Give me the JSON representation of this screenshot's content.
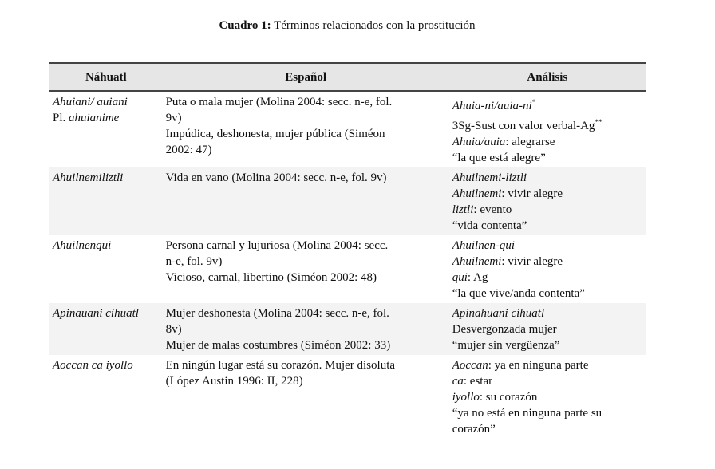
{
  "title": {
    "label": "Cuadro 1:",
    "text": " Términos relacionados con la prostitución"
  },
  "headers": [
    "Náhuatl",
    "Español",
    "Análisis"
  ],
  "rows": [
    {
      "cells": [
        [
          [
            {
              "t": "Ahuiani/ auiani",
              "i": true
            }
          ],
          [
            {
              "t": "Pl. "
            },
            {
              "t": "ahuianime",
              "i": true
            }
          ]
        ],
        [
          [
            {
              "t": "Puta o mala mujer (Molina 2004: secc. n-e, fol."
            }
          ],
          [
            {
              "t": "9v)"
            }
          ],
          [
            {
              "t": "Impúdica, deshonesta, mujer pública (Siméon"
            }
          ],
          [
            {
              "t": "2002: 47)"
            }
          ]
        ],
        [
          [
            {
              "t": "Ahuia-ni/auia-ni",
              "i": true
            },
            {
              "t": "*",
              "s": true
            }
          ],
          [
            {
              "t": "3Sg-Sust con valor verbal-Ag"
            },
            {
              "t": "**",
              "s": true
            }
          ],
          [
            {
              "t": "Ahuia/auia",
              "i": true
            },
            {
              "t": ": alegrarse"
            }
          ],
          [
            {
              "t": "“la que está alegre”"
            }
          ]
        ]
      ]
    },
    {
      "cells": [
        [
          [
            {
              "t": "Ahuilnemiliztli",
              "i": true
            }
          ]
        ],
        [
          [
            {
              "t": "Vida en vano (Molina 2004: secc. n-e, fol. 9v)"
            }
          ]
        ],
        [
          [
            {
              "t": "Ahuilnemi-liztli",
              "i": true
            }
          ],
          [
            {
              "t": "Ahuilnemi",
              "i": true
            },
            {
              "t": ": vivir alegre"
            }
          ],
          [
            {
              "t": "liztli",
              "i": true
            },
            {
              "t": ": evento"
            }
          ],
          [
            {
              "t": "“vida contenta”"
            }
          ]
        ]
      ]
    },
    {
      "cells": [
        [
          [
            {
              "t": "Ahuilnenqui",
              "i": true
            }
          ]
        ],
        [
          [
            {
              "t": "Persona carnal y lujuriosa (Molina 2004: secc."
            }
          ],
          [
            {
              "t": "n-e, fol. 9v)"
            }
          ],
          [
            {
              "t": "Vicioso, carnal, libertino (Siméon 2002: 48)"
            }
          ]
        ],
        [
          [
            {
              "t": "Ahuilnen-qui",
              "i": true
            }
          ],
          [
            {
              "t": "Ahuilnemi",
              "i": true
            },
            {
              "t": ": vivir alegre"
            }
          ],
          [
            {
              "t": "qui",
              "i": true
            },
            {
              "t": ": Ag"
            }
          ],
          [
            {
              "t": "“la que vive/anda contenta”"
            }
          ]
        ]
      ]
    },
    {
      "cells": [
        [
          [
            {
              "t": "Apinauani cihuatl",
              "i": true
            }
          ]
        ],
        [
          [
            {
              "t": "Mujer deshonesta (Molina 2004: secc. n-e, fol."
            }
          ],
          [
            {
              "t": "8v)"
            }
          ],
          [
            {
              "t": "Mujer de malas costumbres (Siméon 2002: 33)"
            }
          ]
        ],
        [
          [
            {
              "t": "Apinahuani cihuatl",
              "i": true
            }
          ],
          [
            {
              "t": "Desvergonzada mujer"
            }
          ],
          [
            {
              "t": "“mujer sin vergüenza”"
            }
          ]
        ]
      ]
    },
    {
      "cells": [
        [
          [
            {
              "t": "Aoccan ca iyollo",
              "i": true
            }
          ]
        ],
        [
          [
            {
              "t": "En ningún lugar está su corazón. Mujer disoluta"
            }
          ],
          [
            {
              "t": "(López Austin 1996: II, 228)"
            }
          ]
        ],
        [
          [
            {
              "t": "Aoccan",
              "i": true
            },
            {
              "t": ": ya en ninguna parte"
            }
          ],
          [
            {
              "t": "ca",
              "i": true
            },
            {
              "t": ": estar"
            }
          ],
          [
            {
              "t": "iyollo",
              "i": true
            },
            {
              "t": ": su corazón"
            }
          ],
          [
            {
              "t": "“ya no está en ninguna parte su"
            }
          ],
          [
            {
              "t": "corazón”"
            }
          ]
        ]
      ]
    }
  ]
}
